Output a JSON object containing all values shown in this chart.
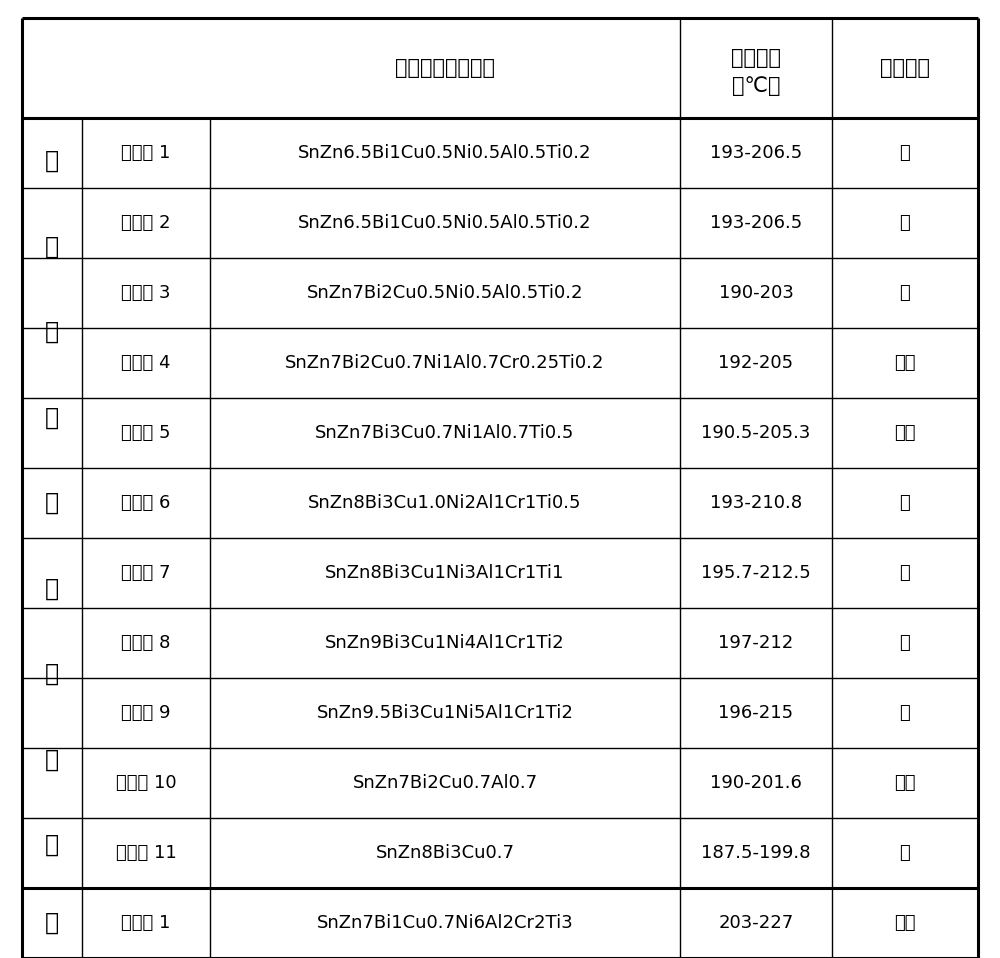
{
  "col3_header_line1": "焊料合金粉末成分",
  "col4_header_line1": "合金熔点",
  "col4_header_line2": "（℃）",
  "col5_header": "抗氧化性",
  "group1_label_chars": [
    "本",
    "发",
    "明",
    "焊",
    "料",
    "合",
    "金",
    "粉",
    "末"
  ],
  "group2_label": "对",
  "rows": [
    {
      "col2": "实施例 1",
      "col3": "SnZn6.5Bi1Cu0.5Ni0.5Al0.5Ti0.2",
      "col4": "193-206.5",
      "col5": "良"
    },
    {
      "col2": "实施例 2",
      "col3": "SnZn6.5Bi1Cu0.5Ni0.5Al0.5Ti0.2",
      "col4": "193-206.5",
      "col5": "良"
    },
    {
      "col2": "实施例 3",
      "col3": "SnZn7Bi2Cu0.5Ni0.5Al0.5Ti0.2",
      "col4": "190-203",
      "col5": "良"
    },
    {
      "col2": "实施例 4",
      "col3": "SnZn7Bi2Cu0.7Ni1Al0.7Cr0.25Ti0.2",
      "col4": "192-205",
      "col5": "较好"
    },
    {
      "col2": "实施例 5",
      "col3": "SnZn7Bi3Cu0.7Ni1Al0.7Ti0.5",
      "col4": "190.5-205.3",
      "col5": "较好"
    },
    {
      "col2": "实施例 6",
      "col3": "SnZn8Bi3Cu1.0Ni2Al1Cr1Ti0.5",
      "col4": "193-210.8",
      "col5": "好"
    },
    {
      "col2": "实施例 7",
      "col3": "SnZn8Bi3Cu1Ni3Al1Cr1Ti1",
      "col4": "195.7-212.5",
      "col5": "好"
    },
    {
      "col2": "实施例 8",
      "col3": "SnZn9Bi3Cu1Ni4Al1Cr1Ti2",
      "col4": "197-212",
      "col5": "好"
    },
    {
      "col2": "实施例 9",
      "col3": "SnZn9.5Bi3Cu1Ni5Al1Cr1Ti2",
      "col4": "196-215",
      "col5": "良"
    },
    {
      "col2": "实施例 10",
      "col3": "SnZn7Bi2Cu0.7Al0.7",
      "col4": "190-201.6",
      "col5": "较好"
    },
    {
      "col2": "实施例 11",
      "col3": "SnZn8Bi3Cu0.7",
      "col4": "187.5-199.8",
      "col5": "良"
    }
  ],
  "row_compare": {
    "col2": "对比例 1",
    "col3": "SnZn7Bi1Cu0.7Ni6Al2Cr2Ti3",
    "col4": "203-227",
    "col5": "较差"
  },
  "bg_color": "#ffffff",
  "line_color": "#000000",
  "text_color": "#000000",
  "font_size_header": 15,
  "font_size_body": 13,
  "font_size_group": 17
}
